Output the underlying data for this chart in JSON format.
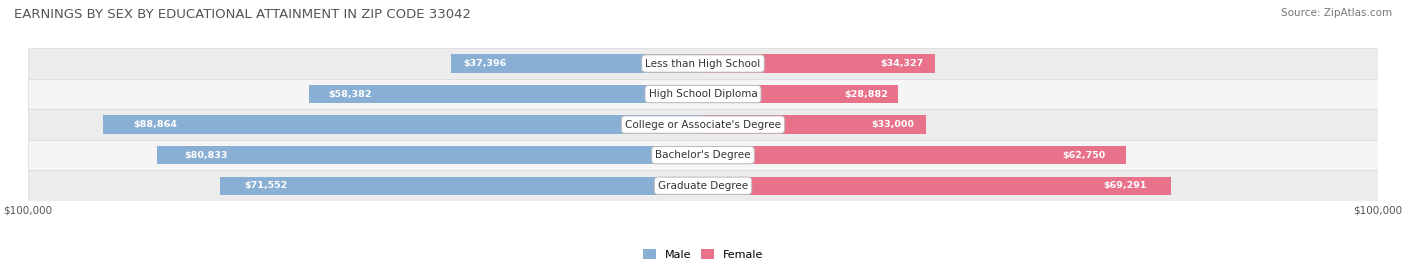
{
  "title": "EARNINGS BY SEX BY EDUCATIONAL ATTAINMENT IN ZIP CODE 33042",
  "source": "Source: ZipAtlas.com",
  "categories": [
    "Less than High School",
    "High School Diploma",
    "College or Associate's Degree",
    "Bachelor's Degree",
    "Graduate Degree"
  ],
  "male_values": [
    37396,
    58382,
    88864,
    80833,
    71552
  ],
  "female_values": [
    34327,
    28882,
    33000,
    62750,
    69291
  ],
  "max_val": 100000,
  "male_color": "#8aafd4",
  "female_color": "#e8728a",
  "row_colors": [
    "#ececec",
    "#f5f5f5",
    "#ececec",
    "#f5f5f5",
    "#ececec"
  ],
  "label_bg_color": "#ffffff",
  "title_color": "#555555",
  "title_fontsize": 9.5,
  "source_fontsize": 7.5,
  "bar_height": 0.6,
  "fig_bg_color": "#ffffff"
}
